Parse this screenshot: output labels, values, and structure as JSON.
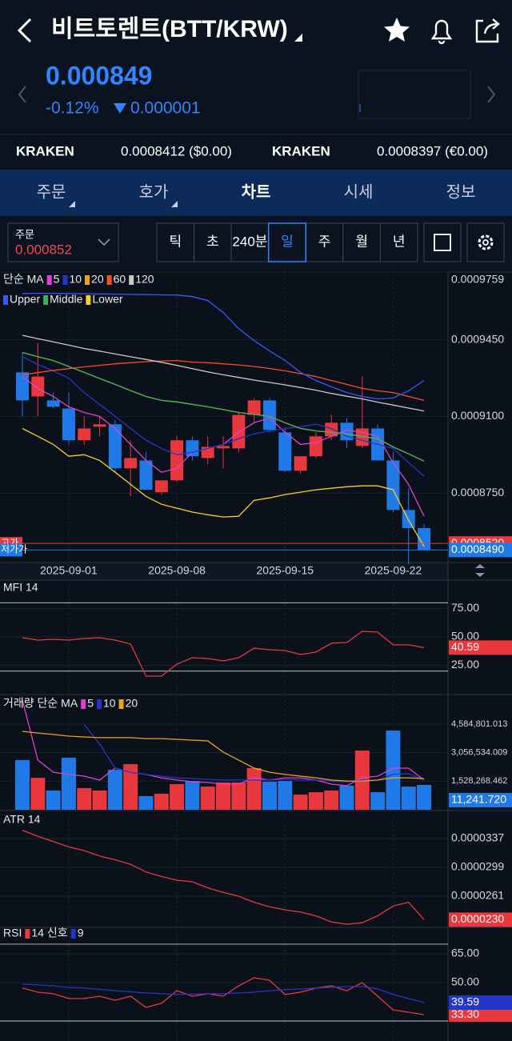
{
  "header": {
    "title": "비트토렌트(BTT/KRW)",
    "price": "0.000849",
    "change_rate": "-0.12%",
    "change": "0.000001"
  },
  "exchanges": [
    {
      "name": "KRAKEN",
      "price": "0.0008412 ($0.00)"
    },
    {
      "name": "KRAKEN",
      "price": "0.0008397 (€0.00)"
    }
  ],
  "tabs": [
    "주문",
    "호가",
    "차트",
    "시세",
    "정보"
  ],
  "active_tab": 2,
  "toolbar": {
    "order_label": "주문",
    "order_price": "0.000852",
    "periods": [
      "틱",
      "초",
      "240분",
      "일",
      "주",
      "월",
      "년"
    ],
    "active_period": 3
  },
  "chart_data": [
    {
      "type": "candlestick",
      "legend_prefix": "단순 MA",
      "categories": [
        null,
        null,
        null,
        "2025-09-01",
        null,
        null,
        null,
        null,
        null,
        null,
        "2025-09-08",
        null,
        null,
        null,
        null,
        null,
        null,
        "2025-09-15",
        null,
        null,
        null,
        null,
        null,
        null,
        "2025-09-22",
        null,
        null
      ],
      "open": [
        0.0009301,
        0.0009191,
        0.0009173,
        0.0009136,
        0.0008991,
        0.0009053,
        0.0009064,
        0.0008863,
        0.0008899,
        0.0008754,
        0.0008808,
        0.0008991,
        0.000891,
        0.0008954,
        0.0008954,
        0.0009107,
        0.0009173,
        0.0009027,
        0.0008852,
        0.0008918,
        0.0009009,
        0.0009071,
        0.0008965,
        0.0009045,
        0.0008899,
        0.0008673,
        0.000859
      ],
      "high": [
        0.0009392,
        0.0009435,
        0.0009209,
        0.0009209,
        0.00091,
        0.00091,
        0.0009082,
        0.0008991,
        0.0008936,
        0.0008808,
        0.0009009,
        0.0009009,
        0.0009009,
        0.0009009,
        0.0009118,
        0.0009184,
        0.0009184,
        0.0009045,
        0.0008918,
        0.0009027,
        0.0009107,
        0.0009093,
        0.0009282,
        0.0009064,
        0.0008936,
        0.0008772,
        0.0008608
      ],
      "low": [
        0.00091,
        0.00091,
        0.0009136,
        0.0008972,
        0.0008972,
        0.0009009,
        0.0008845,
        0.0008735,
        0.0008765,
        0.0008743,
        0.0008801,
        0.0008899,
        0.0008881,
        0.0008863,
        0.0008936,
        0.0009071,
        0.0009027,
        0.0008845,
        0.0008837,
        0.000891,
        0.0008991,
        0.0008954,
        0.0008954,
        0.0008899,
        0.0008663,
        0.0008425,
        0.0008487
      ],
      "close": [
        0.0009173,
        0.0009282,
        0.0009144,
        0.0008991,
        0.0009045,
        0.0009064,
        0.0008863,
        0.000891,
        0.0008765,
        0.0008808,
        0.0008991,
        0.0008918,
        0.0008961,
        0.0008965,
        0.0009107,
        0.0009173,
        0.0009038,
        0.0008852,
        0.0008918,
        0.0009009,
        0.0009071,
        0.0008991,
        0.0009045,
        0.0008899,
        0.0008673,
        0.000859,
        0.000849
      ],
      "up_color": "#e8383e",
      "down_color": "#1f7ae8",
      "series": [
        {
          "name": "5",
          "color": "#e040d0",
          "values": [
            0.0009282,
            0.0009228,
            0.0009191,
            0.0009144,
            0.0009118,
            0.00091,
            0.0009045,
            0.0008972,
            0.0008899,
            0.0008845,
            0.0008863,
            0.0008936,
            0.0008954,
            0.0008972,
            0.0009027,
            0.0009071,
            0.0009093,
            0.0009027,
            0.0008972,
            0.000898,
            0.0009009,
            0.0009038,
            0.0009027,
            0.0009009,
            0.0008889,
            0.000879,
            0.0008644
          ]
        },
        {
          "name": "10",
          "color": "#2436c8",
          "values": [
            0.0009373,
            0.0009337,
            0.0009308,
            0.0009275,
            0.0009209,
            0.0009155,
            0.00091,
            0.0009045,
            0.0008991,
            0.0008954,
            0.0008925,
            0.0008936,
            0.0008954,
            0.0008972,
            0.0008998,
            0.000902,
            0.0009034,
            0.0009045,
            0.0009053,
            0.0009064,
            0.0009045,
            0.0009009,
            0.0008991,
            0.0008972,
            0.0008954,
            0.0008889,
            0.0008827
          ]
        },
        {
          "name": "20",
          "color": "#f0a020",
          "values": [
            0.0009392,
            0.0009373,
            0.0009355,
            0.0009328,
            0.0009301,
            0.0009273,
            0.0009246,
            0.0009218,
            0.0009191,
            0.0009173,
            0.0009166,
            0.0009155,
            0.0009144,
            0.0009131,
            0.0009118,
            0.0009109,
            0.00091,
            0.0009071,
            0.0009045,
            0.0009034,
            0.0009027,
            0.000902,
            0.0009009,
            0.0008998,
            0.0008961,
            0.0008929,
            0.0008896
          ]
        },
        {
          "name": "60",
          "color": "#ff4a24",
          "values": [
            0.000929,
            0.00093,
            0.000931,
            0.0009318,
            0.0009326,
            0.0009333,
            0.000934,
            0.0009345,
            0.000935,
            0.0009353,
            0.0009355,
            0.0009348,
            0.0009345,
            0.000934,
            0.0009335,
            0.0009328,
            0.0009319,
            0.0009308,
            0.0009295,
            0.0009282,
            0.0009264,
            0.0009246,
            0.0009228,
            0.0009217,
            0.0009209,
            0.0009191,
            0.0009173
          ]
        },
        {
          "name": "120",
          "color": "#c8c8c8",
          "values": [
            0.000947,
            0.0009455,
            0.000944,
            0.0009425,
            0.000941,
            0.0009398,
            0.0009385,
            0.0009372,
            0.000936,
            0.0009347,
            0.0009333,
            0.0009318,
            0.0009303,
            0.000929,
            0.0009278,
            0.0009266,
            0.0009255,
            0.0009244,
            0.0009232,
            0.000922,
            0.0009205,
            0.0009192,
            0.000918,
            0.0009165,
            0.0009152,
            0.0009138,
            0.0009125
          ]
        }
      ],
      "bands": [
        {
          "name": "Upper",
          "color": "#3358ff",
          "values": [
            0.0009661,
            0.0009662,
            0.0009662,
            0.0009661,
            0.000966,
            0.0009659,
            0.0009658,
            0.0009657,
            0.0009656,
            0.0009655,
            0.0009654,
            0.0009647,
            0.0009629,
            0.0009574,
            0.0009501,
            0.0009446,
            0.0009399,
            0.0009355,
            0.0009301,
            0.0009264,
            0.0009235,
            0.0009209,
            0.0009191,
            0.000918,
            0.0009184,
            0.0009217,
            0.0009264
          ]
        },
        {
          "name": "Middle",
          "color": "#3fae5a",
          "values": [
            0.0009392,
            0.0009373,
            0.0009355,
            0.0009328,
            0.0009301,
            0.0009273,
            0.0009246,
            0.0009218,
            0.0009191,
            0.0009173,
            0.0009166,
            0.0009155,
            0.0009144,
            0.0009131,
            0.0009118,
            0.0009109,
            0.00091,
            0.0009071,
            0.0009045,
            0.0009034,
            0.0009027,
            0.000902,
            0.0009009,
            0.0008998,
            0.0008961,
            0.0008929,
            0.0008896
          ]
        },
        {
          "name": "Lower",
          "color": "#f5d020",
          "values": [
            0.0009045,
            0.0009009,
            0.0008972,
            0.0008918,
            0.0008925,
            0.0008899,
            0.0008845,
            0.000879,
            0.0008735,
            0.0008699,
            0.0008681,
            0.0008663,
            0.0008651,
            0.0008641,
            0.0008644,
            0.0008717,
            0.0008728,
            0.0008743,
            0.0008754,
            0.0008765,
            0.0008772,
            0.0008779,
            0.0008783,
            0.0008783,
            0.0008765,
            0.0008626,
            0.0008506
          ]
        }
      ],
      "ylim": [
        0.0008433,
        0.0009759
      ],
      "yticks": [
        0.0009759,
        {
          "value": 0.000945,
          "label": "0.0009450"
        },
        {
          "value": 0.00091,
          "label": "0.0009100"
        },
        {
          "value": 0.000875,
          "label": "0.0008750"
        }
      ],
      "price_lines": [
        {
          "value": 0.000852,
          "label": "0.0008520",
          "side_label": "고가",
          "color": "#e8383e"
        },
        {
          "value": 0.000849,
          "label": "0.0008490",
          "side_label": "저가가",
          "color": "#1f7ae8"
        }
      ]
    },
    {
      "type": "line",
      "title": "MFI 14",
      "series": [
        {
          "color": "#e8383e",
          "last_label": "40.59",
          "values": [
            49.3,
            47.2,
            47.9,
            47.2,
            48.6,
            49.3,
            47.2,
            43.7,
            15.5,
            15.5,
            26.1,
            31.7,
            31.0,
            28.9,
            31.7,
            40.1,
            38.7,
            38.0,
            34.5,
            36.6,
            44.4,
            45.1,
            54.9,
            54.2,
            43.0,
            43.0,
            40.59
          ]
        }
      ],
      "ylim": [
        1.4,
        100
      ],
      "yticks": [
        {
          "value": 75,
          "label": "75.00"
        },
        {
          "value": 50,
          "label": "50.00"
        },
        {
          "value": 25,
          "label": "25.00"
        }
      ],
      "levels": [
        80,
        20
      ]
    },
    {
      "type": "bar",
      "legend_prefix": "거래량 단순 MA",
      "values": [
        2660000,
        1710000,
        1030000,
        2790000,
        1160000,
        1030000,
        2140000,
        2440000,
        730000,
        860000,
        1370000,
        1540000,
        1240000,
        1460000,
        1460000,
        2230000,
        1500000,
        1540000,
        810000,
        940000,
        1030000,
        1290000,
        3170000,
        940000,
        4240000,
        1240000,
        1330000
      ],
      "last_label": "11,241.720",
      "series": [
        {
          "name": "5",
          "color": "#e040d0",
          "values": [
            5870000,
            2660000,
            2010000,
            1890000,
            1800000,
            1590000,
            2230000,
            2010000,
            1890000,
            1710000,
            1590000,
            1500000,
            1460000,
            1370000,
            1370000,
            1710000,
            1590000,
            1710000,
            1710000,
            1590000,
            1370000,
            1290000,
            1710000,
            1800000,
            2230000,
            2230000,
            1590000
          ]
        },
        {
          "name": "10",
          "color": "#2436c8",
          "values": [
            null,
            null,
            null,
            null,
            4580000,
            3510000,
            2230000,
            2010000,
            1890000,
            1800000,
            1710000,
            1670000,
            1630000,
            1590000,
            1590000,
            1590000,
            1590000,
            1630000,
            1590000,
            1590000,
            1540000,
            1500000,
            1590000,
            1590000,
            1890000,
            1930000,
            1590000
          ]
        },
        {
          "name": "20",
          "color": "#f0a020",
          "values": [
            4200000,
            4110000,
            4030000,
            3940000,
            3900000,
            3860000,
            3860000,
            3860000,
            3810000,
            3810000,
            3770000,
            3730000,
            3690000,
            3090000,
            2660000,
            2230000,
            2010000,
            1890000,
            1800000,
            1710000,
            1590000,
            1540000,
            1540000,
            1590000,
            1710000,
            1710000,
            1670000
          ]
        }
      ],
      "ylim": [
        0,
        6084558
      ],
      "yticks": [
        {
          "value": 4584801.013,
          "label": "4,584,801.013"
        },
        {
          "value": 3056534.009,
          "label": "3,056,534.009"
        },
        {
          "value": 1528268.462,
          "label": "1,528,268.462"
        }
      ]
    },
    {
      "type": "line",
      "title": "ATR 14",
      "series": [
        {
          "color": "#e8383e",
          "last_label": "0.0000230",
          "values": [
            3.48e-05,
            3.4e-05,
            3.33e-05,
            3.26e-05,
            3.21e-05,
            3.14e-05,
            3.09e-05,
            3.03e-05,
            2.93e-05,
            2.87e-05,
            2.82e-05,
            2.8e-05,
            2.72e-05,
            2.66e-05,
            2.61e-05,
            2.53e-05,
            2.47e-05,
            2.43e-05,
            2.4e-05,
            2.35e-05,
            2.27e-05,
            2.24e-05,
            2.26e-05,
            2.35e-05,
            2.48e-05,
            2.53e-05,
            2.3e-05
          ]
        }
      ],
      "ylim": [
        2.188e-05,
        3.718e-05
      ],
      "yticks": [
        3.37e-05,
        2.99e-05,
        2.61e-05
      ]
    },
    {
      "type": "line",
      "legend_labels": [
        "RSI",
        "신호"
      ],
      "series": [
        {
          "name": "14",
          "color": "#e8383e",
          "last_label": "33.30",
          "values": [
            47.1,
            45,
            44.2,
            41.7,
            41.7,
            42.9,
            40.8,
            42.9,
            37.1,
            39.2,
            45.8,
            42.9,
            44.2,
            42.9,
            48.3,
            52.5,
            51.2,
            43.8,
            45,
            47.1,
            48.3,
            45.8,
            50,
            42.9,
            35.8,
            34.6,
            33.3
          ]
        },
        {
          "name": "9",
          "color": "#2436c8",
          "last_label": "39.59",
          "values": [
            49.2,
            48.8,
            48.3,
            47.5,
            47.1,
            46.5,
            45.8,
            45.2,
            44.6,
            44.2,
            43.8,
            44.0,
            44.2,
            44.2,
            44.6,
            45.0,
            45.8,
            46.3,
            46.7,
            47.1,
            47.5,
            47.9,
            47.9,
            46.7,
            43.8,
            41.7,
            39.59
          ]
        }
      ],
      "ylim": [
        19.6,
        78.3
      ],
      "yticks": [
        {
          "value": 65,
          "label": "65.00"
        },
        {
          "value": 50,
          "label": "50.00"
        }
      ],
      "levels": [
        70,
        30
      ]
    }
  ]
}
